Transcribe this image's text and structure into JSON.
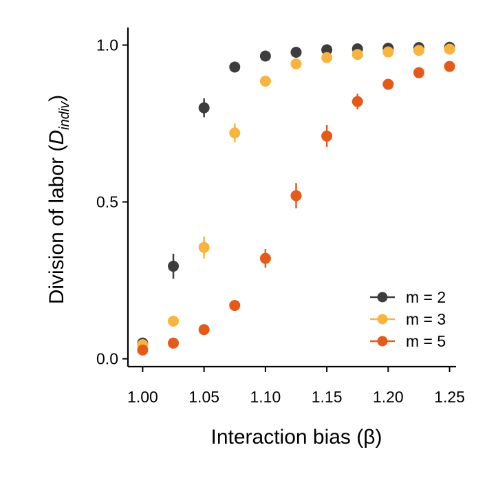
{
  "chart_data": {
    "type": "scatter",
    "xlabel": "Interaction bias (β)",
    "ylabel_main": "Division of labor (",
    "ylabel_var": "D",
    "ylabel_sub": "indiv",
    "ylabel_close": ")",
    "xlim": [
      0.988,
      1.262
    ],
    "ylim": [
      -0.025,
      1.045
    ],
    "x_ticks": [
      1.0,
      1.05,
      1.1,
      1.15,
      1.2,
      1.25
    ],
    "x_tick_labels": [
      "1.00",
      "1.05",
      "1.10",
      "1.15",
      "1.20",
      "1.25"
    ],
    "y_ticks": [
      0.0,
      0.5,
      1.0
    ],
    "y_tick_labels": [
      "0.0",
      "0.5",
      "1.0"
    ],
    "grid": false,
    "legend_position": "bottom-right",
    "x": [
      1.0,
      1.025,
      1.05,
      1.075,
      1.1,
      1.125,
      1.15,
      1.175,
      1.2,
      1.225,
      1.25
    ],
    "series": [
      {
        "name": "m = 2",
        "color": "#3d3d3d",
        "values": [
          0.05,
          0.295,
          0.8,
          0.93,
          0.965,
          0.977,
          0.985,
          0.988,
          0.99,
          0.992,
          0.993
        ],
        "errors": [
          0.01,
          0.04,
          0.03,
          0.01,
          0.005,
          0.004,
          0.003,
          0.002,
          0.002,
          0.002,
          0.002
        ]
      },
      {
        "name": "m = 3",
        "color": "#f9b43f",
        "values": [
          0.045,
          0.12,
          0.355,
          0.72,
          0.885,
          0.94,
          0.96,
          0.97,
          0.978,
          0.983,
          0.987
        ],
        "errors": [
          0.008,
          0.01,
          0.035,
          0.03,
          0.015,
          0.01,
          0.008,
          0.006,
          0.005,
          0.004,
          0.004
        ]
      },
      {
        "name": "m = 5",
        "color": "#e55a19",
        "values": [
          0.028,
          0.05,
          0.093,
          0.17,
          0.32,
          0.52,
          0.71,
          0.82,
          0.875,
          0.912,
          0.932
        ],
        "errors": [
          0.006,
          0.008,
          0.01,
          0.012,
          0.03,
          0.04,
          0.035,
          0.025,
          0.015,
          0.01,
          0.008
        ]
      }
    ]
  }
}
